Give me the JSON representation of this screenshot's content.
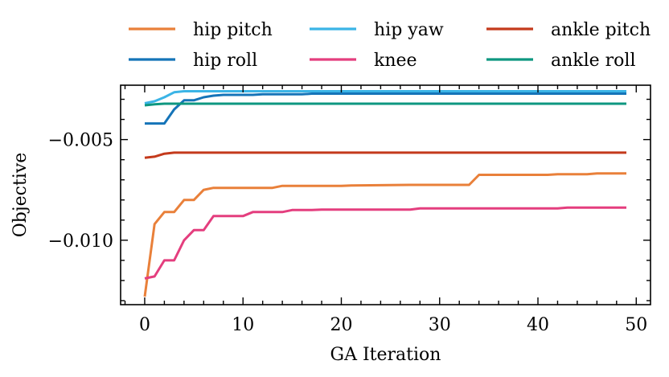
{
  "chart_data": {
    "type": "line",
    "title": "",
    "xlabel": "GA Iteration",
    "ylabel": "Objective",
    "xlim": [
      -2.45,
      51.45
    ],
    "ylim": [
      -0.0132,
      -0.0023
    ],
    "xticks": [
      0,
      10,
      20,
      30,
      40,
      50
    ],
    "xtick_labels": [
      "0",
      "10",
      "20",
      "30",
      "40",
      "50"
    ],
    "yticks": [
      -0.005,
      -0.01
    ],
    "ytick_labels": [
      "−0.005",
      "−0.010"
    ],
    "legend_position": "top, outside plot, 3 columns",
    "grid": false,
    "series": [
      {
        "name": "hip pitch",
        "color": "#E9803A",
        "points": [
          [
            0,
            -0.0128
          ],
          [
            1,
            -0.0092
          ],
          [
            2,
            -0.0086
          ],
          [
            3,
            -0.0086
          ],
          [
            4,
            -0.008
          ],
          [
            5,
            -0.008
          ],
          [
            6,
            -0.0075
          ],
          [
            7,
            -0.0074
          ],
          [
            13,
            -0.0074
          ],
          [
            14,
            -0.0073
          ],
          [
            20,
            -0.0073
          ],
          [
            21,
            -0.00728
          ],
          [
            27,
            -0.00725
          ],
          [
            33,
            -0.00725
          ],
          [
            34,
            -0.00675
          ],
          [
            41,
            -0.00675
          ],
          [
            42,
            -0.00672
          ],
          [
            45,
            -0.00672
          ],
          [
            46,
            -0.00668
          ],
          [
            49,
            -0.00668
          ]
        ]
      },
      {
        "name": "hip roll",
        "color": "#1574B8",
        "points": [
          [
            0,
            -0.0042
          ],
          [
            2,
            -0.0042
          ],
          [
            3,
            -0.0035
          ],
          [
            4,
            -0.00305
          ],
          [
            5,
            -0.00305
          ],
          [
            6,
            -0.0029
          ],
          [
            7,
            -0.00282
          ],
          [
            8,
            -0.00278
          ],
          [
            11,
            -0.00278
          ],
          [
            12,
            -0.00275
          ],
          [
            16,
            -0.00275
          ],
          [
            17,
            -0.00272
          ],
          [
            49,
            -0.00272
          ]
        ]
      },
      {
        "name": "hip yaw",
        "color": "#3BB4E6",
        "points": [
          [
            0,
            -0.0032
          ],
          [
            1,
            -0.0031
          ],
          [
            2,
            -0.0029
          ],
          [
            3,
            -0.00265
          ],
          [
            4,
            -0.0026
          ],
          [
            49,
            -0.0026
          ]
        ]
      },
      {
        "name": "knee",
        "color": "#E43E7E",
        "points": [
          [
            0,
            -0.0119
          ],
          [
            1,
            -0.0118
          ],
          [
            2,
            -0.011
          ],
          [
            3,
            -0.011
          ],
          [
            4,
            -0.01
          ],
          [
            5,
            -0.0095
          ],
          [
            6,
            -0.0095
          ],
          [
            7,
            -0.0088
          ],
          [
            10,
            -0.0088
          ],
          [
            11,
            -0.0086
          ],
          [
            14,
            -0.0086
          ],
          [
            15,
            -0.0085
          ],
          [
            17,
            -0.0085
          ],
          [
            18,
            -0.00848
          ],
          [
            27,
            -0.00848
          ],
          [
            28,
            -0.00842
          ],
          [
            42,
            -0.00842
          ],
          [
            43,
            -0.00838
          ],
          [
            49,
            -0.00838
          ]
        ]
      },
      {
        "name": "ankle pitch",
        "color": "#C43A1C",
        "points": [
          [
            0,
            -0.0059
          ],
          [
            1,
            -0.00585
          ],
          [
            2,
            -0.0057
          ],
          [
            3,
            -0.00565
          ],
          [
            49,
            -0.00565
          ]
        ]
      },
      {
        "name": "ankle roll",
        "color": "#0E9780",
        "points": [
          [
            0,
            -0.0033
          ],
          [
            1,
            -0.00325
          ],
          [
            2,
            -0.00322
          ],
          [
            49,
            -0.00322
          ]
        ]
      }
    ]
  }
}
